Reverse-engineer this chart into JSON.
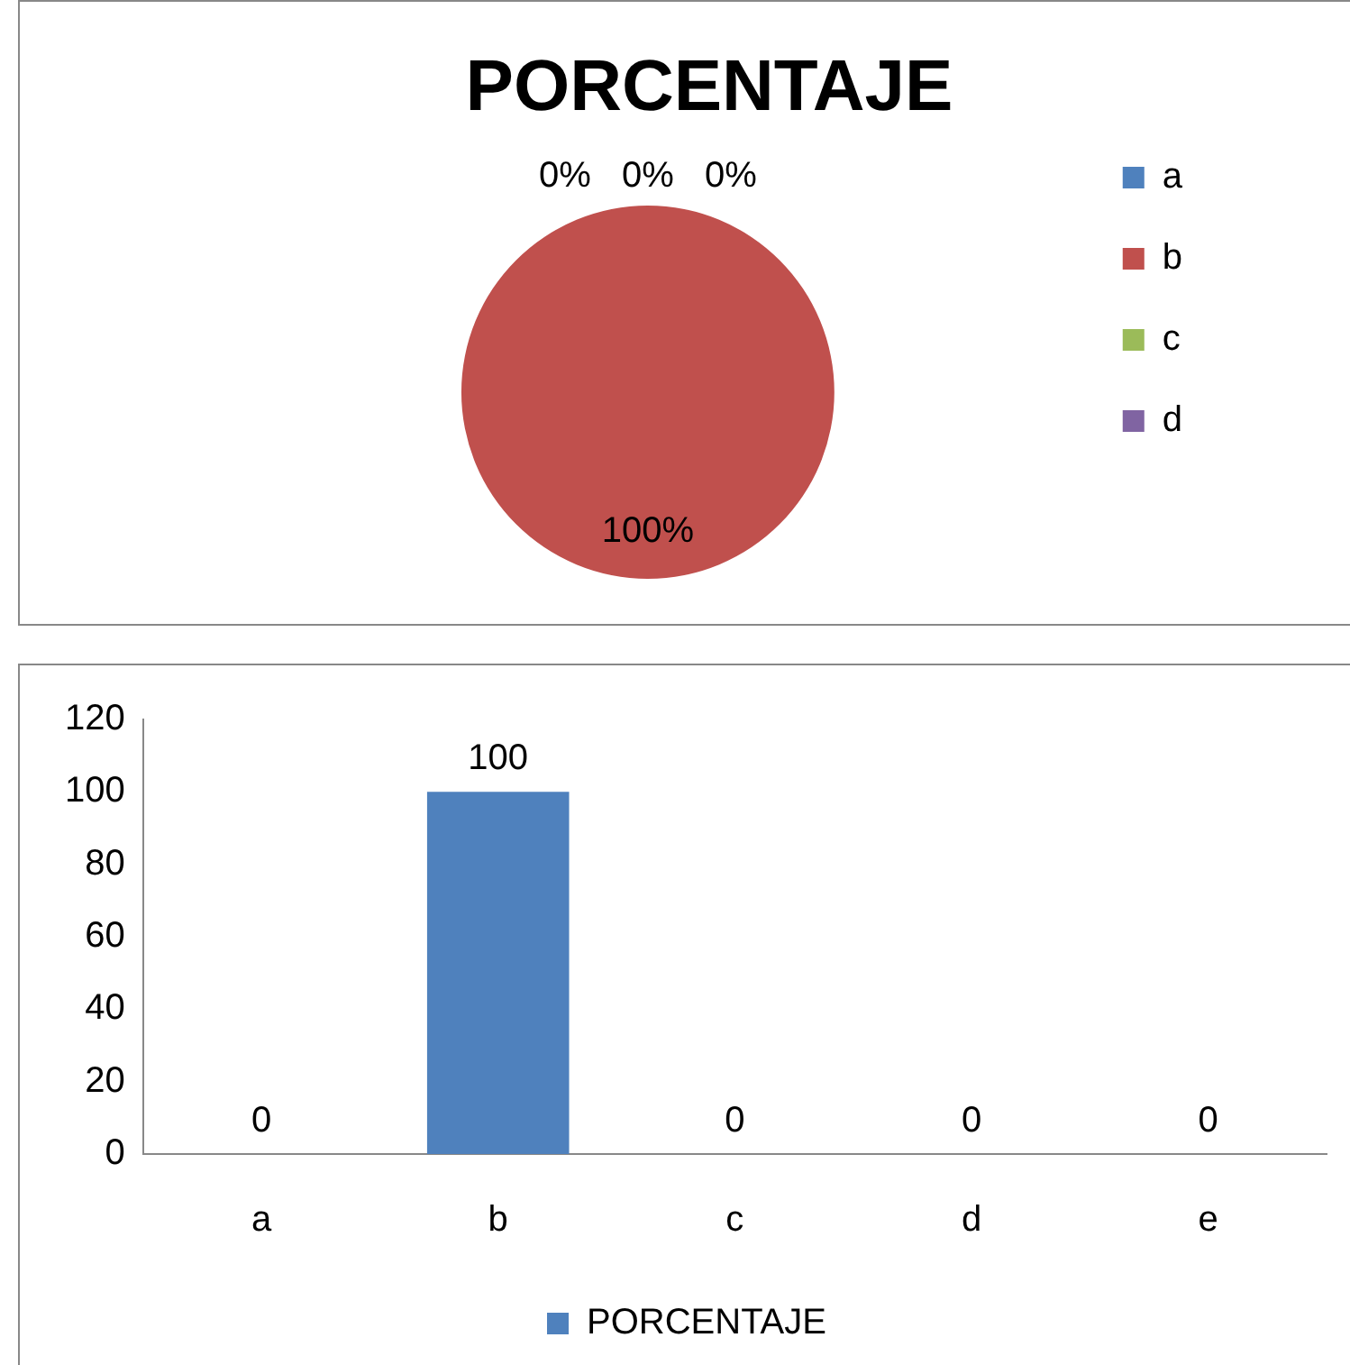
{
  "chart_data": [
    {
      "type": "pie",
      "title": "PORCENTAJE",
      "categories": [
        "a",
        "b",
        "c",
        "d"
      ],
      "values": [
        0,
        100,
        0,
        0
      ],
      "colors": [
        "#4f81bd",
        "#c0504d",
        "#9bbb59",
        "#8064a2"
      ],
      "legend": "right",
      "value_labels": [
        "0%",
        "100%",
        "0%",
        "0%"
      ]
    },
    {
      "type": "bar",
      "categories": [
        "a",
        "b",
        "c",
        "d",
        "e"
      ],
      "series": [
        {
          "name": "PORCENTAJE",
          "color": "#4f81bd",
          "values": [
            0,
            100,
            0,
            0,
            0
          ]
        }
      ],
      "ylim": [
        0,
        120
      ],
      "yticks": [
        0,
        20,
        40,
        60,
        80,
        100,
        120
      ],
      "grid": false,
      "legend": "bottom",
      "data_labels": true
    }
  ]
}
